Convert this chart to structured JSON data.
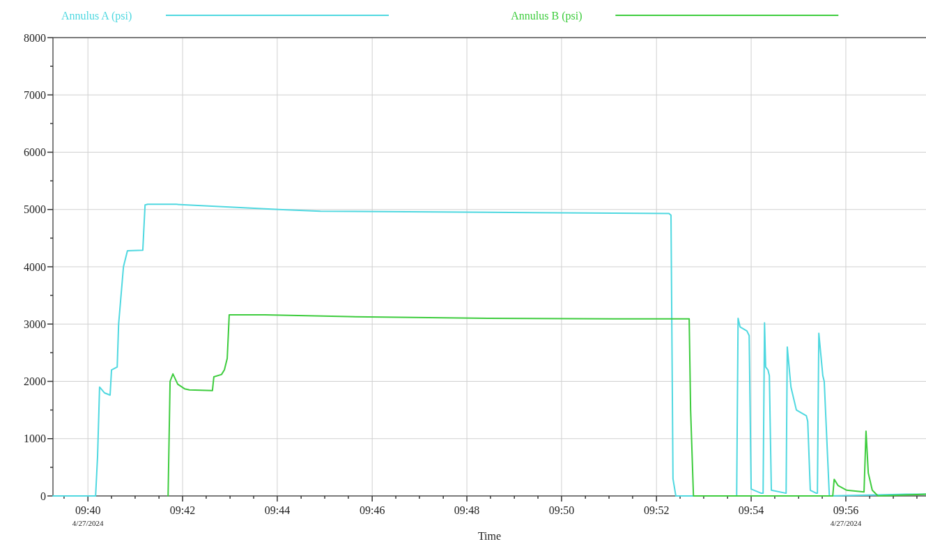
{
  "chart_data": {
    "type": "line",
    "xlabel": "Time",
    "legend": "top",
    "grid": true,
    "line_style": "solid",
    "xlim": [
      9.6544,
      9.9615
    ],
    "ylim": [
      0,
      8000
    ],
    "xticks": [
      {
        "value": 9.6583,
        "label": null
      },
      {
        "value": 9.6667,
        "label": "09:40\n4/27/2024"
      },
      {
        "value": 9.675,
        "label": null
      },
      {
        "value": 9.6833,
        "label": null
      },
      {
        "value": 9.6917,
        "label": null
      },
      {
        "value": 9.7,
        "label": "09:42"
      },
      {
        "value": 9.7083,
        "label": null
      },
      {
        "value": 9.7167,
        "label": null
      },
      {
        "value": 9.725,
        "label": null
      },
      {
        "value": 9.7333,
        "label": "09:44"
      },
      {
        "value": 9.7417,
        "label": null
      },
      {
        "value": 9.75,
        "label": null
      },
      {
        "value": 9.7583,
        "label": null
      },
      {
        "value": 9.7667,
        "label": "09:46"
      },
      {
        "value": 9.775,
        "label": null
      },
      {
        "value": 9.7833,
        "label": null
      },
      {
        "value": 9.7917,
        "label": null
      },
      {
        "value": 9.8,
        "label": "09:48"
      },
      {
        "value": 9.8083,
        "label": null
      },
      {
        "value": 9.8167,
        "label": null
      },
      {
        "value": 9.825,
        "label": null
      },
      {
        "value": 9.8333,
        "label": "09:50"
      },
      {
        "value": 9.8417,
        "label": null
      },
      {
        "value": 9.85,
        "label": null
      },
      {
        "value": 9.8583,
        "label": null
      },
      {
        "value": 9.8667,
        "label": "09:52"
      },
      {
        "value": 9.875,
        "label": null
      },
      {
        "value": 9.8833,
        "label": null
      },
      {
        "value": 9.8917,
        "label": null
      },
      {
        "value": 9.9,
        "label": "09:54"
      },
      {
        "value": 9.9083,
        "label": null
      },
      {
        "value": 9.9167,
        "label": null
      },
      {
        "value": 9.925,
        "label": null
      },
      {
        "value": 9.9333,
        "label": "09:56\n4/27/2024"
      },
      {
        "value": 9.9417,
        "label": null
      },
      {
        "value": 9.95,
        "label": null
      },
      {
        "value": 9.9583,
        "label": null
      }
    ],
    "yticks": [
      0,
      {
        "value": 500,
        "label": null
      },
      1000,
      {
        "value": 1500,
        "label": null
      },
      2000,
      {
        "value": 2500,
        "label": null
      },
      3000,
      {
        "value": 3500,
        "label": null
      },
      4000,
      {
        "value": 4500,
        "label": null
      },
      5000,
      {
        "value": 5500,
        "label": null
      },
      6000,
      {
        "value": 6500,
        "label": null
      },
      7000,
      {
        "value": 7500,
        "label": null
      },
      8000
    ],
    "series": [
      {
        "name": "Annulus A (psi)",
        "color": "#4fd8e0",
        "x": [
          9.6544,
          9.6694,
          9.6701,
          9.6708,
          9.6725,
          9.6745,
          9.675,
          9.677,
          9.6775,
          9.6792,
          9.6806,
          9.686,
          9.6868,
          9.6877,
          9.6978,
          9.7338,
          9.7485,
          9.8074,
          9.8711,
          9.8718,
          9.8725,
          9.8735,
          9.8949,
          9.8954,
          9.8961,
          9.8985,
          9.8993,
          9.9,
          9.9034,
          9.9042,
          9.9047,
          9.9051,
          9.9059,
          9.9064,
          9.9071,
          9.912,
          9.9123,
          9.9127,
          9.914,
          9.9159,
          9.9194,
          9.9199,
          9.9208,
          9.9228,
          9.9233,
          9.9238,
          9.9252,
          9.9257,
          9.9275,
          9.9544,
          9.9615
        ],
        "values": [
          0,
          0,
          700,
          1900,
          1800,
          1760,
          2200,
          2250,
          3000,
          4000,
          4280,
          4290,
          5080,
          5090,
          5090,
          5000,
          4970,
          4950,
          4930,
          4900,
          300,
          0,
          0,
          3100,
          2950,
          2880,
          2800,
          120,
          50,
          50,
          3020,
          2250,
          2200,
          2100,
          100,
          50,
          50,
          2600,
          1900,
          1500,
          1400,
          1300,
          100,
          50,
          50,
          2840,
          2100,
          2000,
          0,
          30,
          30
        ]
      },
      {
        "name": "Annulus B (psi)",
        "color": "#3dcc3d",
        "x": [
          9.6949,
          9.6956,
          9.6966,
          9.6983,
          9.7007,
          9.7024,
          9.7105,
          9.711,
          9.7137,
          9.7147,
          9.7157,
          9.7164,
          9.7289,
          9.7583,
          9.8074,
          9.8515,
          9.8782,
          9.8787,
          9.8797,
          9.9287,
          9.9292,
          9.9306,
          9.9336,
          9.9397,
          9.9404,
          9.9412,
          9.9426,
          9.9446,
          9.9615
        ],
        "values": [
          0,
          2000,
          2130,
          1950,
          1870,
          1850,
          1840,
          2080,
          2120,
          2200,
          2400,
          3160,
          3160,
          3130,
          3100,
          3090,
          3090,
          1500,
          0,
          0,
          290,
          180,
          100,
          70,
          1130,
          400,
          100,
          0,
          30
        ]
      }
    ]
  }
}
